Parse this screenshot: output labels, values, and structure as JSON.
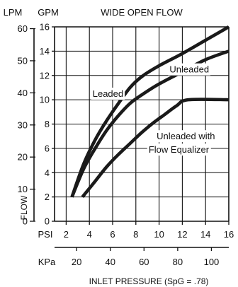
{
  "chart_data": {
    "type": "line",
    "title": "WIDE OPEN FLOW",
    "xlabel": "INLET PRESSURE (SpG = .78)",
    "ylabel": "FLOW",
    "x_axis": {
      "unit": "PSI",
      "range": [
        1,
        16
      ],
      "ticks": [
        "2",
        "4",
        "6",
        "8",
        "10",
        "12",
        "14",
        "16"
      ],
      "tick_values": [
        2,
        4,
        6,
        8,
        10,
        12,
        14,
        16
      ],
      "secondary": {
        "unit": "KPa",
        "ticks": [
          "20",
          "40",
          "60",
          "80",
          "100"
        ],
        "tick_values": [
          20,
          40,
          60,
          80,
          100
        ],
        "kpa_per_psi": 6.895
      }
    },
    "y_axis": {
      "unit": "GPM",
      "range": [
        0,
        16
      ],
      "ticks": [
        "0",
        "2",
        "4",
        "6",
        "8",
        "10",
        "12",
        "14",
        "16"
      ],
      "tick_values": [
        0,
        2,
        4,
        6,
        8,
        10,
        12,
        14,
        16
      ],
      "secondary": {
        "unit": "LPM",
        "ticks": [
          "0",
          "10",
          "20",
          "30",
          "40",
          "50",
          "60"
        ],
        "tick_values": [
          0,
          10,
          20,
          30,
          40,
          50,
          60
        ],
        "lpm_per_gpm": 3.785
      }
    },
    "grid": true,
    "series": [
      {
        "name": "Leaded",
        "points": [
          [
            2.5,
            2.0
          ],
          [
            3.5,
            4.7
          ],
          [
            4.5,
            6.7
          ],
          [
            5.5,
            8.3
          ],
          [
            6.5,
            9.7
          ],
          [
            7.5,
            11.0
          ],
          [
            8.5,
            11.9
          ],
          [
            10,
            12.8
          ],
          [
            12,
            13.8
          ],
          [
            14,
            14.9
          ],
          [
            16,
            16.0
          ]
        ]
      },
      {
        "name": "Unleaded",
        "points": [
          [
            2.5,
            2.0
          ],
          [
            3.5,
            4.3
          ],
          [
            4.5,
            6.0
          ],
          [
            5.5,
            7.5
          ],
          [
            6.5,
            8.7
          ],
          [
            7.5,
            9.7
          ],
          [
            8.5,
            10.4
          ],
          [
            10,
            11.3
          ],
          [
            12,
            12.3
          ],
          [
            14,
            13.3
          ],
          [
            16,
            14.0
          ]
        ]
      },
      {
        "name": "Unleaded with Flow Equalizer",
        "points": [
          [
            3.4,
            2.0
          ],
          [
            4.5,
            3.3
          ],
          [
            5.5,
            4.5
          ],
          [
            6.5,
            5.5
          ],
          [
            7.5,
            6.4
          ],
          [
            8.5,
            7.3
          ],
          [
            9.5,
            8.1
          ],
          [
            10.5,
            8.8
          ],
          [
            11.5,
            9.5
          ],
          [
            12.5,
            10.0
          ],
          [
            16,
            10.0
          ]
        ]
      }
    ],
    "annotations": [
      {
        "text": "Leaded",
        "series": "Leaded",
        "at": [
          5.6,
          10.5
        ]
      },
      {
        "text": "Unleaded",
        "series": "Unleaded",
        "at": [
          12.6,
          12.5
        ]
      },
      {
        "text": "Unleaded with",
        "series": "Unleaded with Flow Equalizer",
        "at": [
          12.3,
          7.0
        ]
      },
      {
        "text": "Flow Equalizer",
        "series": "Unleaded with Flow Equalizer",
        "at": [
          11.7,
          5.9
        ]
      }
    ]
  }
}
